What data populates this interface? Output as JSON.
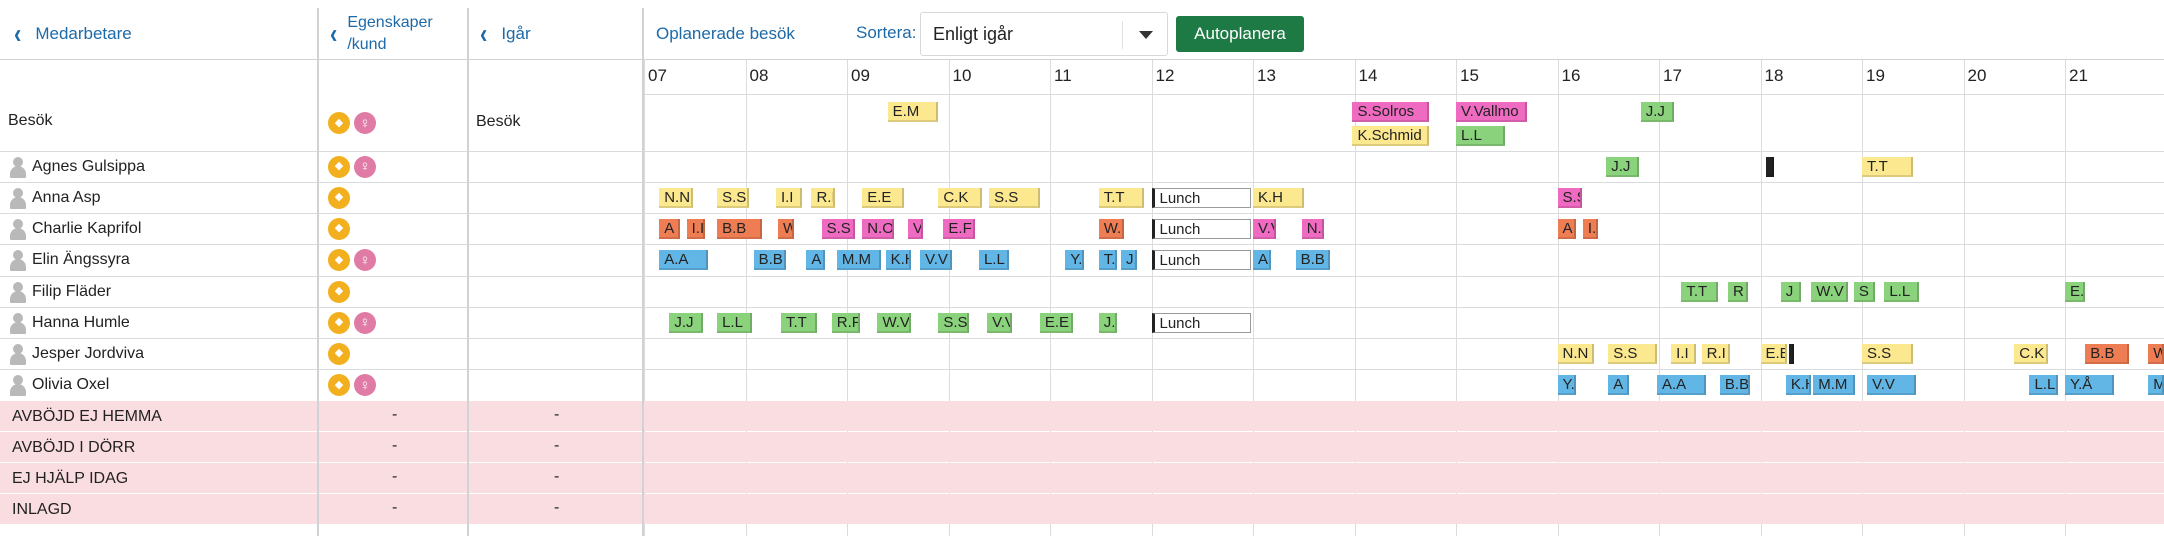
{
  "header": {
    "col_staff_label": "Medarbetare",
    "col_attr_label_1": "Egenskaper",
    "col_attr_label_2": "/kund",
    "col_yesterday_label": "Igår",
    "unplanned_label": "Oplanerade besök",
    "sort_label": "Sortera:",
    "sort_value": "Enligt igår",
    "autoplan_label": "Autoplanera"
  },
  "hours": [
    "07",
    "08",
    "09",
    "10",
    "11",
    "12",
    "13",
    "14",
    "15",
    "16",
    "17",
    "18",
    "19",
    "20",
    "21"
  ],
  "rows": [
    {
      "name": "Besök",
      "icons": [
        "dog",
        "female"
      ],
      "yesterday": "Besök",
      "is_person": false
    },
    {
      "name": "Agnes Gulsippa",
      "icons": [
        "dog",
        "female"
      ],
      "yesterday": "",
      "is_person": true
    },
    {
      "name": "Anna Asp",
      "icons": [
        "dog"
      ],
      "yesterday": "",
      "is_person": true
    },
    {
      "name": "Charlie Kaprifol",
      "icons": [
        "dog"
      ],
      "yesterday": "",
      "is_person": true
    },
    {
      "name": "Elin Ängssyra",
      "icons": [
        "dog",
        "female"
      ],
      "yesterday": "",
      "is_person": true
    },
    {
      "name": "Filip Fläder",
      "icons": [
        "dog"
      ],
      "yesterday": "",
      "is_person": true
    },
    {
      "name": "Hanna Humle",
      "icons": [
        "dog",
        "female"
      ],
      "yesterday": "",
      "is_person": true
    },
    {
      "name": "Jesper Jordviva",
      "icons": [
        "dog"
      ],
      "yesterday": "",
      "is_person": true
    },
    {
      "name": "Olivia Oxel",
      "icons": [
        "dog",
        "female"
      ],
      "yesterday": "",
      "is_person": true
    }
  ],
  "statuses": [
    {
      "label": "AVBÖJD EJ HEMMA",
      "attr_value": "-",
      "yesterday_value": "-"
    },
    {
      "label": "AVBÖJD I DÖRR",
      "attr_value": "-",
      "yesterday_value": "-"
    },
    {
      "label": "EJ HJÄLP IDAG",
      "attr_value": "-",
      "yesterday_value": "-"
    },
    {
      "label": "INLAGD",
      "attr_value": "-",
      "yesterday_value": "-"
    }
  ],
  "visits": [
    {
      "row": 0,
      "sub": 0,
      "start": 9.4,
      "end": 9.92,
      "label": "E.M",
      "color": "yellow"
    },
    {
      "row": 0,
      "sub": 0,
      "start": 13.98,
      "end": 14.75,
      "label": "S.Solros",
      "color": "pink"
    },
    {
      "row": 0,
      "sub": 1,
      "start": 13.98,
      "end": 14.75,
      "label": "K.Schmid",
      "color": "yellow"
    },
    {
      "row": 0,
      "sub": 0,
      "start": 15.0,
      "end": 15.72,
      "label": "V.Vallmo",
      "color": "pink"
    },
    {
      "row": 0,
      "sub": 1,
      "start": 15.0,
      "end": 15.5,
      "label": "L.L",
      "color": "green"
    },
    {
      "row": 0,
      "sub": 0,
      "start": 16.82,
      "end": 17.17,
      "label": "J.J",
      "color": "green"
    },
    {
      "row": 1,
      "start": 16.48,
      "end": 16.82,
      "label": "J.J",
      "color": "green"
    },
    {
      "row": 1,
      "start": 18.05,
      "end": 18.15,
      "label": "",
      "color": "dark"
    },
    {
      "row": 1,
      "start": 19.0,
      "end": 19.52,
      "label": "T.T",
      "color": "yellow"
    },
    {
      "row": 2,
      "start": 7.15,
      "end": 7.5,
      "label": "N.N",
      "color": "yellow"
    },
    {
      "row": 2,
      "start": 7.72,
      "end": 8.05,
      "label": "S.S",
      "color": "yellow"
    },
    {
      "row": 2,
      "start": 8.3,
      "end": 8.58,
      "label": "I.I",
      "color": "yellow"
    },
    {
      "row": 2,
      "start": 8.65,
      "end": 8.9,
      "label": "R.I",
      "color": "yellow"
    },
    {
      "row": 2,
      "start": 9.15,
      "end": 9.58,
      "label": "E.E",
      "color": "yellow"
    },
    {
      "row": 2,
      "start": 9.9,
      "end": 10.35,
      "label": "C.K",
      "color": "yellow"
    },
    {
      "row": 2,
      "start": 10.4,
      "end": 10.92,
      "label": "S.S",
      "color": "yellow"
    },
    {
      "row": 2,
      "start": 11.48,
      "end": 11.95,
      "label": "T.T",
      "color": "yellow"
    },
    {
      "row": 2,
      "start": 12.0,
      "end": 13.0,
      "label": "Lunch",
      "color": "lunch"
    },
    {
      "row": 2,
      "start": 13.0,
      "end": 13.52,
      "label": "K.H",
      "color": "yellow"
    },
    {
      "row": 2,
      "start": 16.0,
      "end": 16.26,
      "label": "S.S",
      "color": "pink"
    },
    {
      "row": 3,
      "start": 7.15,
      "end": 7.37,
      "label": "A",
      "color": "orange"
    },
    {
      "row": 3,
      "start": 7.42,
      "end": 7.62,
      "label": "I.I",
      "color": "orange"
    },
    {
      "row": 3,
      "start": 7.72,
      "end": 8.18,
      "label": "B.B",
      "color": "orange"
    },
    {
      "row": 3,
      "start": 8.32,
      "end": 8.5,
      "label": "W",
      "color": "orange"
    },
    {
      "row": 3,
      "start": 8.75,
      "end": 9.1,
      "label": "S.S",
      "color": "pink"
    },
    {
      "row": 3,
      "start": 9.15,
      "end": 9.48,
      "label": "N.O",
      "color": "pink"
    },
    {
      "row": 3,
      "start": 9.6,
      "end": 9.77,
      "label": "V.",
      "color": "pink"
    },
    {
      "row": 3,
      "start": 9.95,
      "end": 10.28,
      "label": "E.F",
      "color": "pink"
    },
    {
      "row": 3,
      "start": 11.48,
      "end": 11.75,
      "label": "W.",
      "color": "orange"
    },
    {
      "row": 3,
      "start": 12.0,
      "end": 13.0,
      "label": "Lunch",
      "color": "lunch"
    },
    {
      "row": 3,
      "start": 13.0,
      "end": 13.25,
      "label": "V.V",
      "color": "pink"
    },
    {
      "row": 3,
      "start": 13.48,
      "end": 13.72,
      "label": "N.O",
      "color": "pink"
    },
    {
      "row": 3,
      "start": 16.0,
      "end": 16.2,
      "label": "A",
      "color": "orange"
    },
    {
      "row": 3,
      "start": 16.25,
      "end": 16.42,
      "label": "I.I",
      "color": "orange"
    },
    {
      "row": 4,
      "start": 7.15,
      "end": 7.65,
      "label": "A.A",
      "color": "blue"
    },
    {
      "row": 4,
      "start": 8.08,
      "end": 8.42,
      "label": "B.B",
      "color": "blue"
    },
    {
      "row": 4,
      "start": 8.6,
      "end": 8.8,
      "label": "A",
      "color": "blue"
    },
    {
      "row": 4,
      "start": 8.9,
      "end": 9.35,
      "label": "M.M",
      "color": "blue"
    },
    {
      "row": 4,
      "start": 9.38,
      "end": 9.65,
      "label": "K.H",
      "color": "blue"
    },
    {
      "row": 4,
      "start": 9.72,
      "end": 10.05,
      "label": "V.V",
      "color": "blue"
    },
    {
      "row": 4,
      "start": 10.3,
      "end": 10.62,
      "label": "L.L",
      "color": "blue"
    },
    {
      "row": 4,
      "start": 11.15,
      "end": 11.35,
      "label": "Y.",
      "color": "blue"
    },
    {
      "row": 4,
      "start": 11.48,
      "end": 11.68,
      "label": "T.T",
      "color": "blue"
    },
    {
      "row": 4,
      "start": 11.7,
      "end": 11.88,
      "label": "J.J",
      "color": "blue"
    },
    {
      "row": 4,
      "start": 12.0,
      "end": 13.0,
      "label": "Lunch",
      "color": "lunch"
    },
    {
      "row": 4,
      "start": 13.0,
      "end": 13.2,
      "label": "A",
      "color": "blue"
    },
    {
      "row": 4,
      "start": 13.42,
      "end": 13.78,
      "label": "B.B",
      "color": "blue"
    },
    {
      "row": 5,
      "start": 17.22,
      "end": 17.6,
      "label": "T.T",
      "color": "green"
    },
    {
      "row": 5,
      "start": 17.68,
      "end": 17.9,
      "label": "R",
      "color": "green"
    },
    {
      "row": 5,
      "start": 18.2,
      "end": 18.42,
      "label": "J",
      "color": "green"
    },
    {
      "row": 5,
      "start": 18.5,
      "end": 18.88,
      "label": "W.V",
      "color": "green"
    },
    {
      "row": 5,
      "start": 18.92,
      "end": 19.15,
      "label": "S",
      "color": "green"
    },
    {
      "row": 5,
      "start": 19.22,
      "end": 19.58,
      "label": "L.L",
      "color": "green"
    },
    {
      "row": 5,
      "start": 21.0,
      "end": 21.22,
      "label": "E.",
      "color": "green"
    },
    {
      "row": 6,
      "start": 7.25,
      "end": 7.6,
      "label": "J.J",
      "color": "green"
    },
    {
      "row": 6,
      "start": 7.72,
      "end": 8.08,
      "label": "L.L",
      "color": "green"
    },
    {
      "row": 6,
      "start": 8.35,
      "end": 8.72,
      "label": "T.T",
      "color": "green"
    },
    {
      "row": 6,
      "start": 8.85,
      "end": 9.15,
      "label": "R.F",
      "color": "green"
    },
    {
      "row": 6,
      "start": 9.3,
      "end": 9.65,
      "label": "W.V",
      "color": "green"
    },
    {
      "row": 6,
      "start": 9.9,
      "end": 10.22,
      "label": "S.S",
      "color": "green"
    },
    {
      "row": 6,
      "start": 10.38,
      "end": 10.65,
      "label": "V.V",
      "color": "green"
    },
    {
      "row": 6,
      "start": 10.9,
      "end": 11.25,
      "label": "E.E",
      "color": "green"
    },
    {
      "row": 6,
      "start": 11.48,
      "end": 11.68,
      "label": "J.J",
      "color": "green"
    },
    {
      "row": 6,
      "start": 12.0,
      "end": 13.0,
      "label": "Lunch",
      "color": "lunch"
    },
    {
      "row": 7,
      "start": 16.0,
      "end": 16.38,
      "label": "N.N",
      "color": "yellow"
    },
    {
      "row": 7,
      "start": 16.5,
      "end": 17.0,
      "label": "S.S",
      "color": "yellow"
    },
    {
      "row": 7,
      "start": 17.12,
      "end": 17.38,
      "label": "I.I",
      "color": "yellow"
    },
    {
      "row": 7,
      "start": 17.42,
      "end": 17.72,
      "label": "R.I",
      "color": "yellow"
    },
    {
      "row": 7,
      "start": 18.0,
      "end": 18.28,
      "label": "E.E",
      "color": "yellow"
    },
    {
      "row": 7,
      "start": 18.28,
      "end": 18.35,
      "label": "",
      "color": "dark"
    },
    {
      "row": 7,
      "start": 19.0,
      "end": 19.52,
      "label": "S.S",
      "color": "yellow"
    },
    {
      "row": 7,
      "start": 20.5,
      "end": 20.85,
      "label": "C.K",
      "color": "yellow"
    },
    {
      "row": 7,
      "start": 21.2,
      "end": 21.65,
      "label": "B.B",
      "color": "orange"
    },
    {
      "row": 7,
      "start": 21.82,
      "end": 22.0,
      "label": "W",
      "color": "orange"
    },
    {
      "row": 8,
      "start": 16.0,
      "end": 16.2,
      "label": "Y.",
      "color": "blue"
    },
    {
      "row": 8,
      "start": 16.5,
      "end": 16.72,
      "label": "A",
      "color": "blue"
    },
    {
      "row": 8,
      "start": 16.98,
      "end": 17.48,
      "label": "A.A",
      "color": "blue"
    },
    {
      "row": 8,
      "start": 17.6,
      "end": 17.92,
      "label": "B.B",
      "color": "blue"
    },
    {
      "row": 8,
      "start": 18.25,
      "end": 18.52,
      "label": "K.H",
      "color": "blue"
    },
    {
      "row": 8,
      "start": 18.52,
      "end": 18.95,
      "label": "M.M",
      "color": "blue"
    },
    {
      "row": 8,
      "start": 19.05,
      "end": 19.55,
      "label": "V.V",
      "color": "blue"
    },
    {
      "row": 8,
      "start": 20.65,
      "end": 20.95,
      "label": "L.L",
      "color": "blue"
    },
    {
      "row": 8,
      "start": 21.0,
      "end": 21.5,
      "label": "Y.Å",
      "color": "blue"
    },
    {
      "row": 8,
      "start": 21.82,
      "end": 22.0,
      "label": "M",
      "color": "blue"
    }
  ],
  "colors": {
    "yellow": "#fbe88f",
    "green": "#8bd27c",
    "blue": "#62b6e6",
    "pink": "#ef6ac1",
    "orange": "#ef7d54",
    "accent": "#1d6aa8",
    "button": "#1e7a44",
    "status_band": "#f9dde0"
  }
}
